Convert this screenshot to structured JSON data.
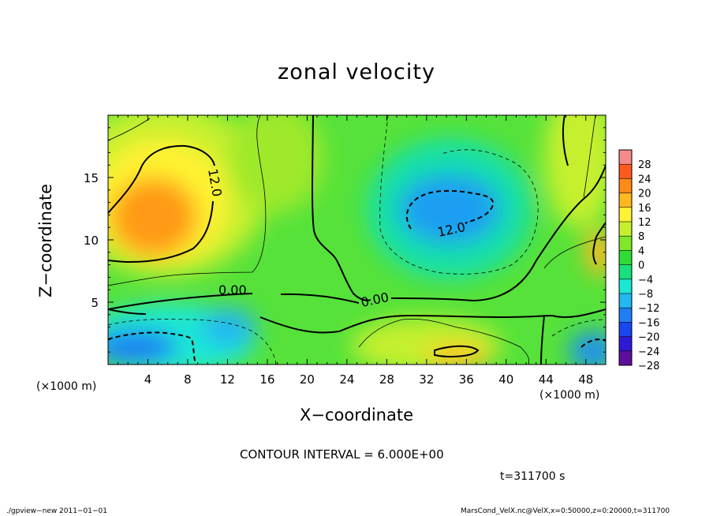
{
  "chart_data": {
    "type": "heatmap",
    "title": "zonal velocity",
    "xlabel": "X−coordinate",
    "ylabel": "Z−coordinate",
    "x_unit_label": "(×1000 m)",
    "xlim": [
      0,
      50
    ],
    "ylim": [
      0,
      20
    ],
    "x_ticks": [
      4,
      8,
      12,
      16,
      20,
      24,
      28,
      32,
      36,
      40,
      44,
      48
    ],
    "y_ticks": [
      5,
      10,
      15
    ],
    "colorbar_ticks": [
      "28",
      "24",
      "20",
      "16",
      "12",
      "8",
      "4",
      "0",
      "−4",
      "−8",
      "−12",
      "−16",
      "−20",
      "−24",
      "−28"
    ],
    "colorbar_levels": [
      -30,
      -26,
      -22,
      -18,
      -14,
      -10,
      -6,
      -2,
      2,
      6,
      10,
      14,
      18,
      22,
      26,
      30
    ],
    "colorbar_colors": [
      "#5e0e9c",
      "#2e1ad6",
      "#1846f0",
      "#1f7ff2",
      "#22b8f2",
      "#1ae8d4",
      "#18e07a",
      "#2fdc36",
      "#7fe82a",
      "#c6f02e",
      "#fff233",
      "#ffb820",
      "#ff8a18",
      "#ff5a1e",
      "#f68a8a"
    ],
    "contour_labels": [
      "12.0",
      "12.0",
      "0.00",
      "0.00"
    ],
    "contour_interval": "CONTOUR INTERVAL = 6.000E+00",
    "time": "t=311700 s",
    "features": [
      {
        "kind": "max",
        "x": 5.5,
        "z": 12.5,
        "value": 18
      },
      {
        "kind": "min",
        "x": 33,
        "z": 12.5,
        "value": -14
      },
      {
        "kind": "min",
        "x": 2.5,
        "z": 1.5,
        "value": -14
      },
      {
        "kind": "min",
        "x": 12.5,
        "z": 3.5,
        "value": -9
      },
      {
        "kind": "max",
        "x": 34,
        "z": 1.2,
        "value": 12
      },
      {
        "kind": "min",
        "x": 49,
        "z": 1.5,
        "value": -12
      },
      {
        "kind": "max",
        "x": 49.5,
        "z": 9,
        "value": 14
      }
    ]
  },
  "footer": {
    "left": "./gpview−new   2011−01−01",
    "right": "MarsCond_VelX.nc@VelX,x=0:50000,z=0:20000,t=311700"
  }
}
